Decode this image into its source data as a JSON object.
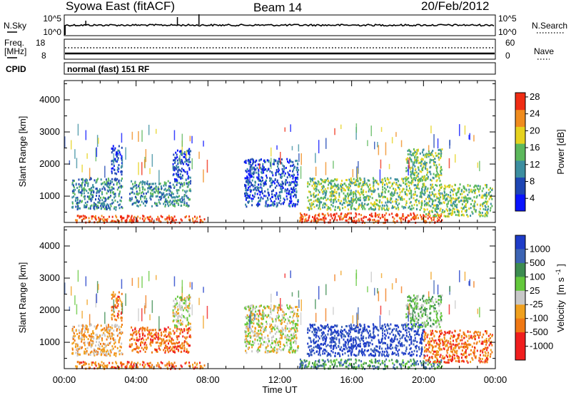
{
  "header": {
    "station": "Syowa East (fitACF)",
    "beam": "Beam 14",
    "date": "20/Feb/2012"
  },
  "strip": {
    "nsky_label": "N.Sky",
    "nsky_ticks_left": [
      "10^5",
      "10^0"
    ],
    "nsky_ticks_right": [
      "10^5",
      "10^0"
    ],
    "nsearch_label": "N.Search",
    "freq_label_1": "Freq.",
    "freq_label_2": "[MHz]",
    "freq_ticks": [
      "18",
      "8"
    ],
    "nave_ticks": [
      "60",
      "0"
    ],
    "nave_label": "Nave",
    "cpid_label": "CPID",
    "cpid_value": "normal (fast) 151 RF"
  },
  "chart_data": [
    {
      "type": "heatmap",
      "name": "power",
      "ylabel": "Slant Range [km]",
      "xlabel": "",
      "x_ticks": [
        "00:00",
        "04:00",
        "08:00",
        "12:00",
        "16:00",
        "20:00",
        "00:00"
      ],
      "x_range_hours": [
        0,
        24
      ],
      "y_ticks": [
        1000,
        2000,
        3000,
        4000
      ],
      "ylim": [
        180,
        4600
      ],
      "colorbar": {
        "label": "Power [dB]",
        "ticks": [
          "4",
          "8",
          "12",
          "16",
          "20",
          "24",
          "28"
        ],
        "colors": [
          "#0a14ff",
          "#1e46b4",
          "#3c8ea0",
          "#5cb85c",
          "#e6d21e",
          "#f08c1e",
          "#f02d14"
        ]
      },
      "echo_regions": [
        {
          "t": [
            0.6,
            7.8
          ],
          "r": [
            200,
            420
          ],
          "level": 6,
          "note": "near-range strong echoes"
        },
        {
          "t": [
            0.4,
            3.2
          ],
          "r": [
            600,
            1600
          ],
          "level": 2
        },
        {
          "t": [
            2.6,
            3.2
          ],
          "r": [
            1700,
            2600
          ],
          "level": 1
        },
        {
          "t": [
            3.6,
            7.0
          ],
          "r": [
            700,
            1500
          ],
          "level": 2
        },
        {
          "t": [
            6.0,
            7.0
          ],
          "r": [
            1500,
            2500
          ],
          "level": 1
        },
        {
          "t": [
            10.0,
            13.0
          ],
          "r": [
            700,
            2200
          ],
          "level": 1
        },
        {
          "t": [
            13.5,
            20.0
          ],
          "r": [
            600,
            1600
          ],
          "level": 3
        },
        {
          "t": [
            13.0,
            21.0
          ],
          "r": [
            200,
            500
          ],
          "level": 6
        },
        {
          "t": [
            20.0,
            23.8
          ],
          "r": [
            400,
            1400
          ],
          "level": 3
        },
        {
          "t": [
            19.0,
            21.0
          ],
          "r": [
            1500,
            2500
          ],
          "level": 3
        }
      ]
    },
    {
      "type": "heatmap",
      "name": "velocity",
      "ylabel": "Slant Range [km]",
      "xlabel": "Time UT",
      "x_ticks": [
        "00:00",
        "04:00",
        "08:00",
        "12:00",
        "16:00",
        "20:00",
        "00:00"
      ],
      "x_range_hours": [
        0,
        24
      ],
      "y_ticks": [
        1000,
        2000,
        3000,
        4000
      ],
      "ylim": [
        180,
        4600
      ],
      "colorbar": {
        "label": "Velocity [m s-1]",
        "label_main": "Velocity",
        "label_unit_pre": "[m s",
        "label_unit_sup": "-1",
        "label_unit_post": "]",
        "ticks": [
          "1000",
          "500",
          "100",
          "25",
          "-25",
          "-100",
          "-500",
          "-1000"
        ],
        "colors": [
          "#1e3cc8",
          "#3c64b4",
          "#3c8c50",
          "#64c83c",
          "#c8c8c8",
          "#f0a01e",
          "#f07814",
          "#f01e1e"
        ]
      },
      "echo_regions": [
        {
          "t": [
            0.6,
            7.8
          ],
          "r": [
            200,
            420
          ],
          "level": 6
        },
        {
          "t": [
            0.4,
            3.2
          ],
          "r": [
            600,
            1600
          ],
          "level": 5
        },
        {
          "t": [
            2.6,
            3.2
          ],
          "r": [
            1700,
            2600
          ],
          "level": 6
        },
        {
          "t": [
            3.6,
            7.0
          ],
          "r": [
            700,
            1500
          ],
          "level": 6
        },
        {
          "t": [
            6.0,
            7.0
          ],
          "r": [
            1500,
            2500
          ],
          "level": 4
        },
        {
          "t": [
            10.0,
            13.0
          ],
          "r": [
            700,
            2200
          ],
          "level": 4
        },
        {
          "t": [
            13.5,
            20.0
          ],
          "r": [
            600,
            1600
          ],
          "level": 0
        },
        {
          "t": [
            13.0,
            21.0
          ],
          "r": [
            200,
            500
          ],
          "level": 2
        },
        {
          "t": [
            20.0,
            23.8
          ],
          "r": [
            400,
            1400
          ],
          "level": 6
        },
        {
          "t": [
            19.0,
            21.0
          ],
          "r": [
            1500,
            2500
          ],
          "level": 3
        }
      ]
    }
  ]
}
